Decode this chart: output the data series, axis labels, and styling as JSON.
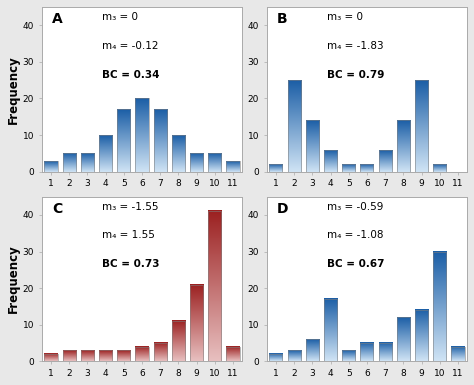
{
  "subplots": [
    {
      "label": "A",
      "values": [
        3,
        5,
        5,
        10,
        17,
        20,
        17,
        10,
        5,
        5,
        3
      ],
      "line1": "m₃ = 0",
      "line2": "m₄ = -0.12",
      "line3": "BC = 0.34",
      "color_type": "blue",
      "ylim": [
        0,
        45
      ]
    },
    {
      "label": "B",
      "values": [
        2,
        25,
        14,
        6,
        2,
        2,
        6,
        14,
        25,
        2,
        0
      ],
      "line1": "m₃ = 0",
      "line2": "m₄ = -1.83",
      "line3": "BC = 0.79",
      "color_type": "blue",
      "ylim": [
        0,
        45
      ]
    },
    {
      "label": "C",
      "values": [
        2,
        3,
        3,
        3,
        3,
        4,
        5,
        11,
        21,
        41,
        4
      ],
      "line1": "m₃ = -1.55",
      "line2": "m₄ = 1.55",
      "line3": "BC = 0.73",
      "color_type": "red",
      "ylim": [
        0,
        45
      ]
    },
    {
      "label": "D",
      "values": [
        2,
        3,
        6,
        17,
        3,
        5,
        5,
        12,
        14,
        30,
        4
      ],
      "line1": "m₃ = -0.59",
      "line2": "m₄ = -1.08",
      "line3": "BC = 0.67",
      "color_type": "blue",
      "ylim": [
        0,
        45
      ]
    }
  ],
  "categories": [
    1,
    2,
    3,
    4,
    5,
    6,
    7,
    8,
    9,
    10,
    11
  ],
  "blue_top": "#1b5ea6",
  "blue_bottom": "#d0e4f5",
  "red_top": "#9b2020",
  "red_bottom": "#e8c0c0",
  "ylabel": "Frequency",
  "fig_bg": "#e8e8e8",
  "panel_bg": "#ffffff",
  "yticks": [
    0,
    10,
    20,
    30,
    40
  ],
  "bar_width": 0.72,
  "bar_edge_color": "#808080",
  "bar_edge_lw": 0.4,
  "spine_color": "#aaaaaa",
  "tick_fontsize": 6.5,
  "label_fontsize": 10,
  "stats_fontsize": 7.5,
  "ylabel_fontsize": 8.5
}
